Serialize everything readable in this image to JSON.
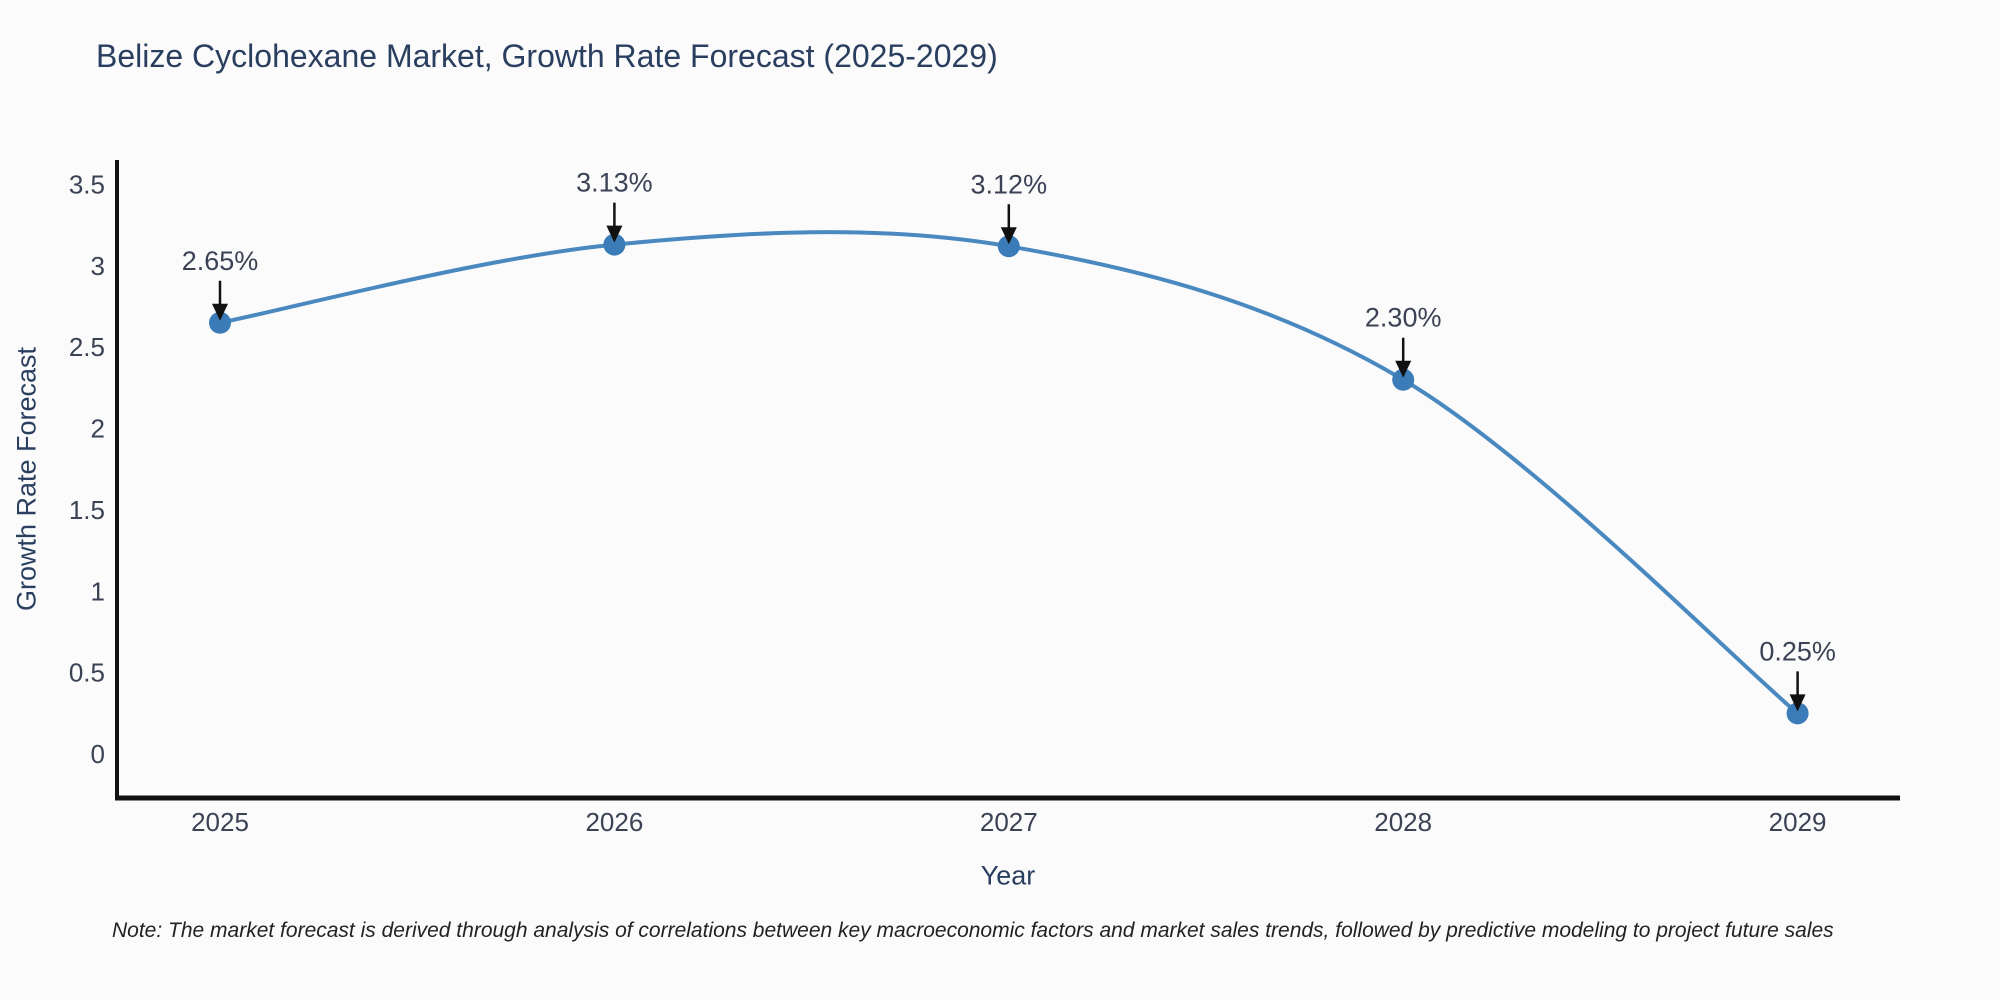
{
  "footnote": "Note: The market forecast is derived through analysis of correlations between key macroeconomic factors and market sales trends, followed by predictive modeling to project future sales",
  "chart_data": {
    "type": "line",
    "title": "Belize Cyclohexane Market, Growth Rate Forecast (2025-2029)",
    "xlabel": "Year",
    "ylabel": "Growth Rate Forecast",
    "categories": [
      "2025",
      "2026",
      "2027",
      "2028",
      "2029"
    ],
    "series": [
      {
        "name": "Growth Rate Forecast",
        "values": [
          2.65,
          3.13,
          3.12,
          2.3,
          0.25
        ]
      }
    ],
    "point_labels": [
      "2.65%",
      "3.13%",
      "3.12%",
      "2.30%",
      "0.25%"
    ],
    "line_shape": "spline",
    "markers": true,
    "grid": false,
    "legend_position": "none",
    "annotation_arrows": true,
    "ylim": [
      -0.27,
      3.65
    ],
    "yticks": [
      0,
      0.5,
      1,
      1.5,
      2,
      2.5,
      3,
      3.5
    ],
    "ytick_labels": [
      "0",
      "0.5",
      "1",
      "1.5",
      "2",
      "2.5",
      "3",
      "3.5"
    ],
    "colors": {
      "line": "#4a89c0",
      "marker": "#3b7cb8",
      "arrow": "#111111",
      "axis": "#111111",
      "title_text": "#2a3f5f",
      "axis_title_text": "#2a3f5f",
      "tick_text": "#3a4254",
      "annotation_text": "#3a4254",
      "note_text": "#222222",
      "background": "#fbfbfc"
    }
  }
}
